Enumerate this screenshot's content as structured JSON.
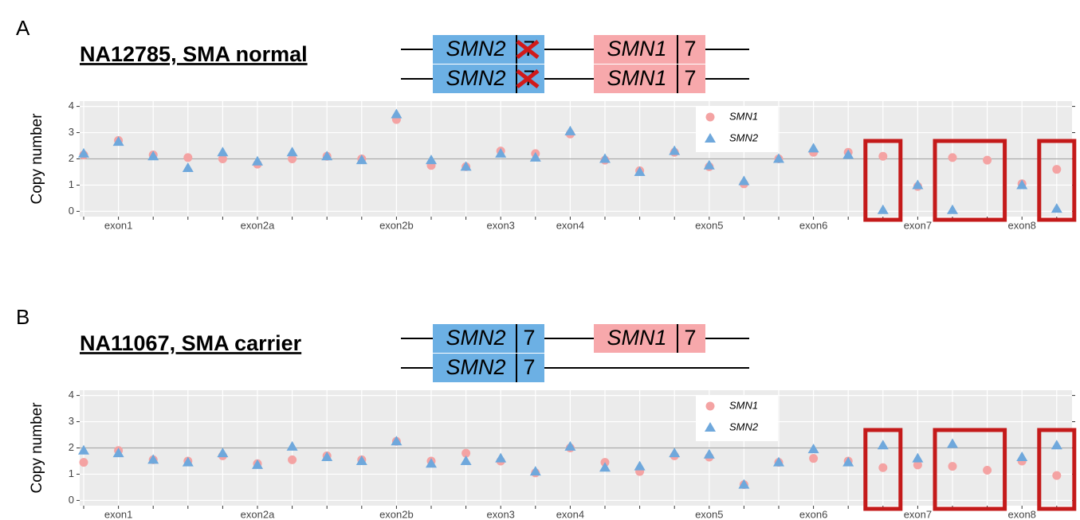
{
  "chart_data": [
    {
      "type": "scatter",
      "panel": "A",
      "title": "NA12785, SMA normal",
      "ylabel": "Copy number",
      "diagram": [
        [
          {
            "gene": "SMN2",
            "exon": "7",
            "color": "#6cb0e4",
            "deleted": true
          },
          {
            "gene": "SMN1",
            "exon": "7",
            "color": "#f7a8ab",
            "deleted": false
          }
        ],
        [
          {
            "gene": "SMN2",
            "exon": "7",
            "color": "#6cb0e4",
            "deleted": true
          },
          {
            "gene": "SMN1",
            "exon": "7",
            "color": "#f7a8ab",
            "deleted": false
          }
        ]
      ],
      "categories": [
        null,
        "exon1",
        null,
        null,
        null,
        "exon2a",
        null,
        null,
        null,
        "exon2b",
        null,
        null,
        "exon3",
        null,
        "exon4",
        null,
        null,
        null,
        "exon5",
        null,
        null,
        "exon6",
        null,
        null,
        "exon7",
        null,
        null,
        "exon8",
        null
      ],
      "series": [
        {
          "name": "SMN1",
          "color": "#f4a3a3",
          "marker": "circle",
          "values": [
            2.15,
            2.7,
            2.15,
            2.05,
            2.0,
            1.8,
            2.0,
            2.1,
            2.0,
            3.5,
            1.75,
            1.7,
            2.3,
            2.2,
            2.95,
            1.95,
            1.55,
            2.25,
            1.7,
            1.05,
            2.0,
            2.25,
            2.25,
            2.1,
            0.95,
            2.05,
            1.95,
            1.05,
            1.6
          ]
        },
        {
          "name": "SMN2",
          "color": "#6fa8dc",
          "marker": "triangle",
          "values": [
            2.2,
            2.65,
            2.1,
            1.65,
            2.25,
            1.9,
            2.25,
            2.1,
            1.95,
            3.7,
            1.95,
            1.7,
            2.2,
            2.05,
            3.05,
            2.0,
            1.5,
            2.3,
            1.75,
            1.15,
            2.0,
            2.4,
            2.15,
            0.05,
            1.0,
            0.05,
            null,
            1.0,
            0.1
          ]
        }
      ],
      "ylim": [
        -0.2,
        4.2
      ],
      "yticks": [
        0,
        1,
        2,
        3,
        4
      ],
      "reference_line": 2,
      "grid": true,
      "legend": "top-right"
    },
    {
      "type": "scatter",
      "panel": "B",
      "title": "NA11067, SMA carrier",
      "ylabel": "Copy number",
      "diagram": [
        [
          {
            "gene": "SMN2",
            "exon": "7",
            "color": "#6cb0e4",
            "deleted": false
          },
          {
            "gene": "SMN1",
            "exon": "7",
            "color": "#f7a8ab",
            "deleted": false
          }
        ],
        [
          {
            "gene": "SMN2",
            "exon": "7",
            "color": "#6cb0e4",
            "deleted": false
          }
        ]
      ],
      "categories": [
        null,
        "exon1",
        null,
        null,
        null,
        "exon2a",
        null,
        null,
        null,
        "exon2b",
        null,
        null,
        "exon3",
        null,
        "exon4",
        null,
        null,
        null,
        "exon5",
        null,
        null,
        "exon6",
        null,
        null,
        "exon7",
        null,
        null,
        "exon8",
        null
      ],
      "series": [
        {
          "name": "SMN1",
          "color": "#f4a3a3",
          "marker": "circle",
          "values": [
            1.45,
            1.9,
            1.55,
            1.5,
            1.7,
            1.4,
            1.55,
            1.7,
            1.55,
            2.25,
            1.5,
            1.8,
            1.5,
            1.05,
            2.0,
            1.45,
            1.1,
            1.7,
            1.65,
            0.6,
            1.45,
            1.6,
            1.5,
            1.25,
            1.35,
            1.3,
            1.15,
            1.5,
            0.95
          ]
        },
        {
          "name": "SMN2",
          "color": "#6fa8dc",
          "marker": "triangle",
          "values": [
            1.9,
            1.8,
            1.55,
            1.45,
            1.8,
            1.35,
            2.05,
            1.65,
            1.5,
            2.25,
            1.4,
            1.5,
            1.6,
            1.1,
            2.05,
            1.25,
            1.3,
            1.8,
            1.75,
            0.6,
            1.45,
            1.95,
            1.45,
            2.1,
            1.6,
            2.15,
            null,
            1.65,
            2.1
          ]
        }
      ],
      "ylim": [
        -0.2,
        4.2
      ],
      "yticks": [
        0,
        1,
        2,
        3,
        4
      ],
      "reference_line": 2,
      "grid": true,
      "legend": "top-right"
    }
  ]
}
